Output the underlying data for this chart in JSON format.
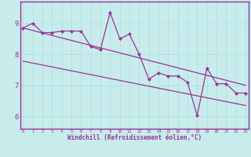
{
  "xlabel": "Windchill (Refroidissement éolien,°C)",
  "bg_color": "#c8ecec",
  "axis_bg_color": "#c8ecec",
  "line_color": "#993399",
  "border_color": "#993399",
  "text_color": "#993399",
  "xlim": [
    -0.3,
    23.3
  ],
  "ylim": [
    5.6,
    9.7
  ],
  "yticks": [
    6,
    7,
    8,
    9
  ],
  "xticks": [
    0,
    1,
    2,
    3,
    4,
    5,
    6,
    7,
    8,
    9,
    10,
    11,
    12,
    13,
    14,
    15,
    16,
    17,
    18,
    19,
    20,
    21,
    22,
    23
  ],
  "data_x": [
    0,
    1,
    2,
    3,
    4,
    5,
    6,
    7,
    8,
    9,
    10,
    11,
    12,
    13,
    14,
    15,
    16,
    17,
    18,
    19,
    20,
    21,
    22,
    23
  ],
  "data_y": [
    8.85,
    9.0,
    8.7,
    8.7,
    8.75,
    8.75,
    8.75,
    8.25,
    8.15,
    9.35,
    8.5,
    8.65,
    8.0,
    7.2,
    7.4,
    7.3,
    7.3,
    7.1,
    6.02,
    7.55,
    7.05,
    7.05,
    6.75,
    6.75
  ],
  "trend1_x": [
    0,
    23
  ],
  "trend1_y": [
    8.85,
    7.0
  ],
  "trend2_x": [
    0,
    23
  ],
  "trend2_y": [
    7.78,
    6.35
  ]
}
